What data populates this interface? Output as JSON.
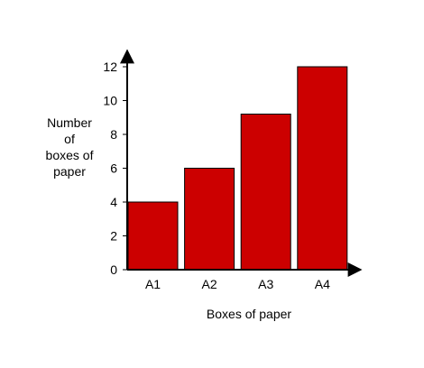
{
  "chart_data": {
    "type": "bar",
    "categories": [
      "A1",
      "A2",
      "A3",
      "A4"
    ],
    "values": [
      4,
      6,
      9.2,
      12
    ],
    "title": "",
    "xlabel": "Boxes of paper",
    "ylabel_lines": [
      "Number",
      "of",
      "boxes of",
      "paper"
    ],
    "ylim": [
      0,
      12
    ],
    "yticks": [
      0,
      2,
      4,
      6,
      8,
      10,
      12
    ],
    "grid": false,
    "bar_color": "#cc0000",
    "axis_color": "#000000"
  }
}
